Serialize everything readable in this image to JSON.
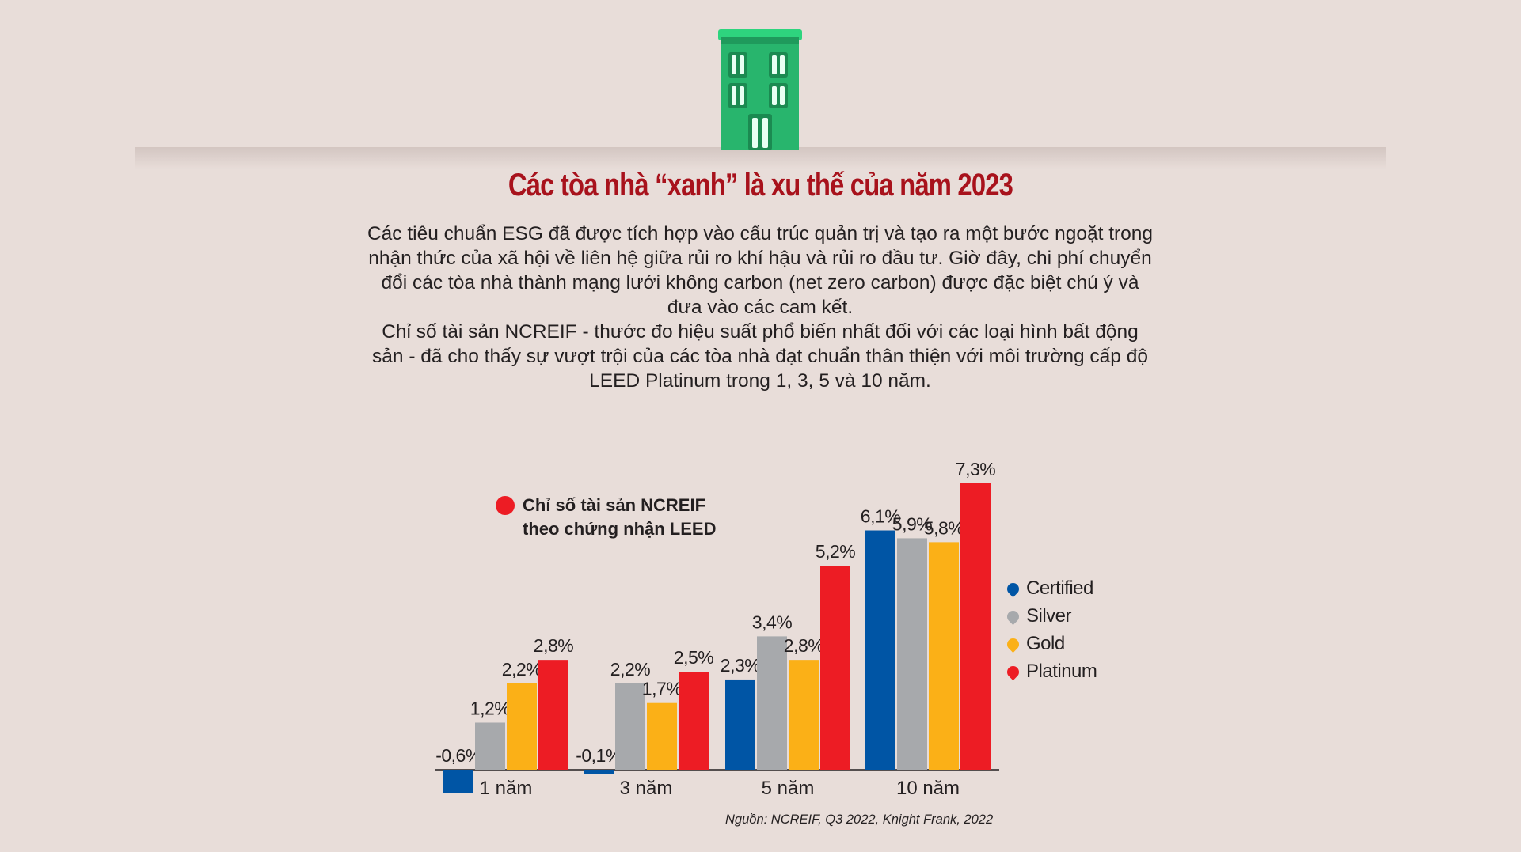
{
  "header": {
    "title": "Các tòa nhà “xanh” là xu thế của năm 2023",
    "paragraphs": [
      "Các tiêu chuẩn ESG đã được tích hợp vào cấu trúc quản trị và tạo ra một bước ngoặt trong nhận thức của xã hội về liên hệ giữa rủi ro khí hậu và rủi ro đầu tư. Giờ đây, chi phí chuyển đổi các tòa nhà thành mạng lưới không carbon (net zero carbon) được đặc biệt chú ý và đưa vào các cam kết.",
      "Chỉ số tài sản NCREIF - thước đo hiệu suất phổ biến nhất đối với các loại hình bất động sản - đã cho thấy sự vượt trội của các tòa nhà đạt chuẩn thân thiện với môi trường cấp độ LEED Platinum trong 1, 3, 5 và 10 năm."
    ]
  },
  "chart_note": {
    "line1": "Chỉ số tài sản NCREIF",
    "line2": "theo chứng nhận LEED",
    "color": "#ed1c24"
  },
  "chart_data": {
    "type": "bar",
    "categories": [
      "1 năm",
      "3 năm",
      "5 năm",
      "10 năm"
    ],
    "series": [
      {
        "name": "Certified",
        "color": "#0055a5",
        "values": [
          -0.6,
          -0.1,
          2.3,
          6.1
        ],
        "labels": [
          "-0,6%",
          "-0,1%",
          "2,3%",
          "6,1%"
        ]
      },
      {
        "name": "Silver",
        "color": "#a7a9ac",
        "values": [
          1.2,
          2.2,
          3.4,
          5.9
        ],
        "labels": [
          "1,2%",
          "2,2%",
          "3,4%",
          "5,9%"
        ]
      },
      {
        "name": "Gold",
        "color": "#fbb017",
        "values": [
          2.2,
          1.7,
          2.8,
          5.8
        ],
        "labels": [
          "2,2%",
          "1,7%",
          "2,8%",
          "5,8%"
        ]
      },
      {
        "name": "Platinum",
        "color": "#ed1c24",
        "values": [
          2.8,
          2.5,
          5.2,
          7.3
        ],
        "labels": [
          "2,8%",
          "2,5%",
          "5,2%",
          "7,3%"
        ]
      }
    ],
    "ylim": [
      -0.6,
      7.3
    ],
    "grid": false,
    "legend": "right",
    "xlabel": "",
    "ylabel": ""
  },
  "source": "Nguồn: NCREIF, Q3 2022, Knight Frank, 2022",
  "colors": {
    "background": "#e8ddd9",
    "title": "#a8121c",
    "building": "#2bb673"
  }
}
